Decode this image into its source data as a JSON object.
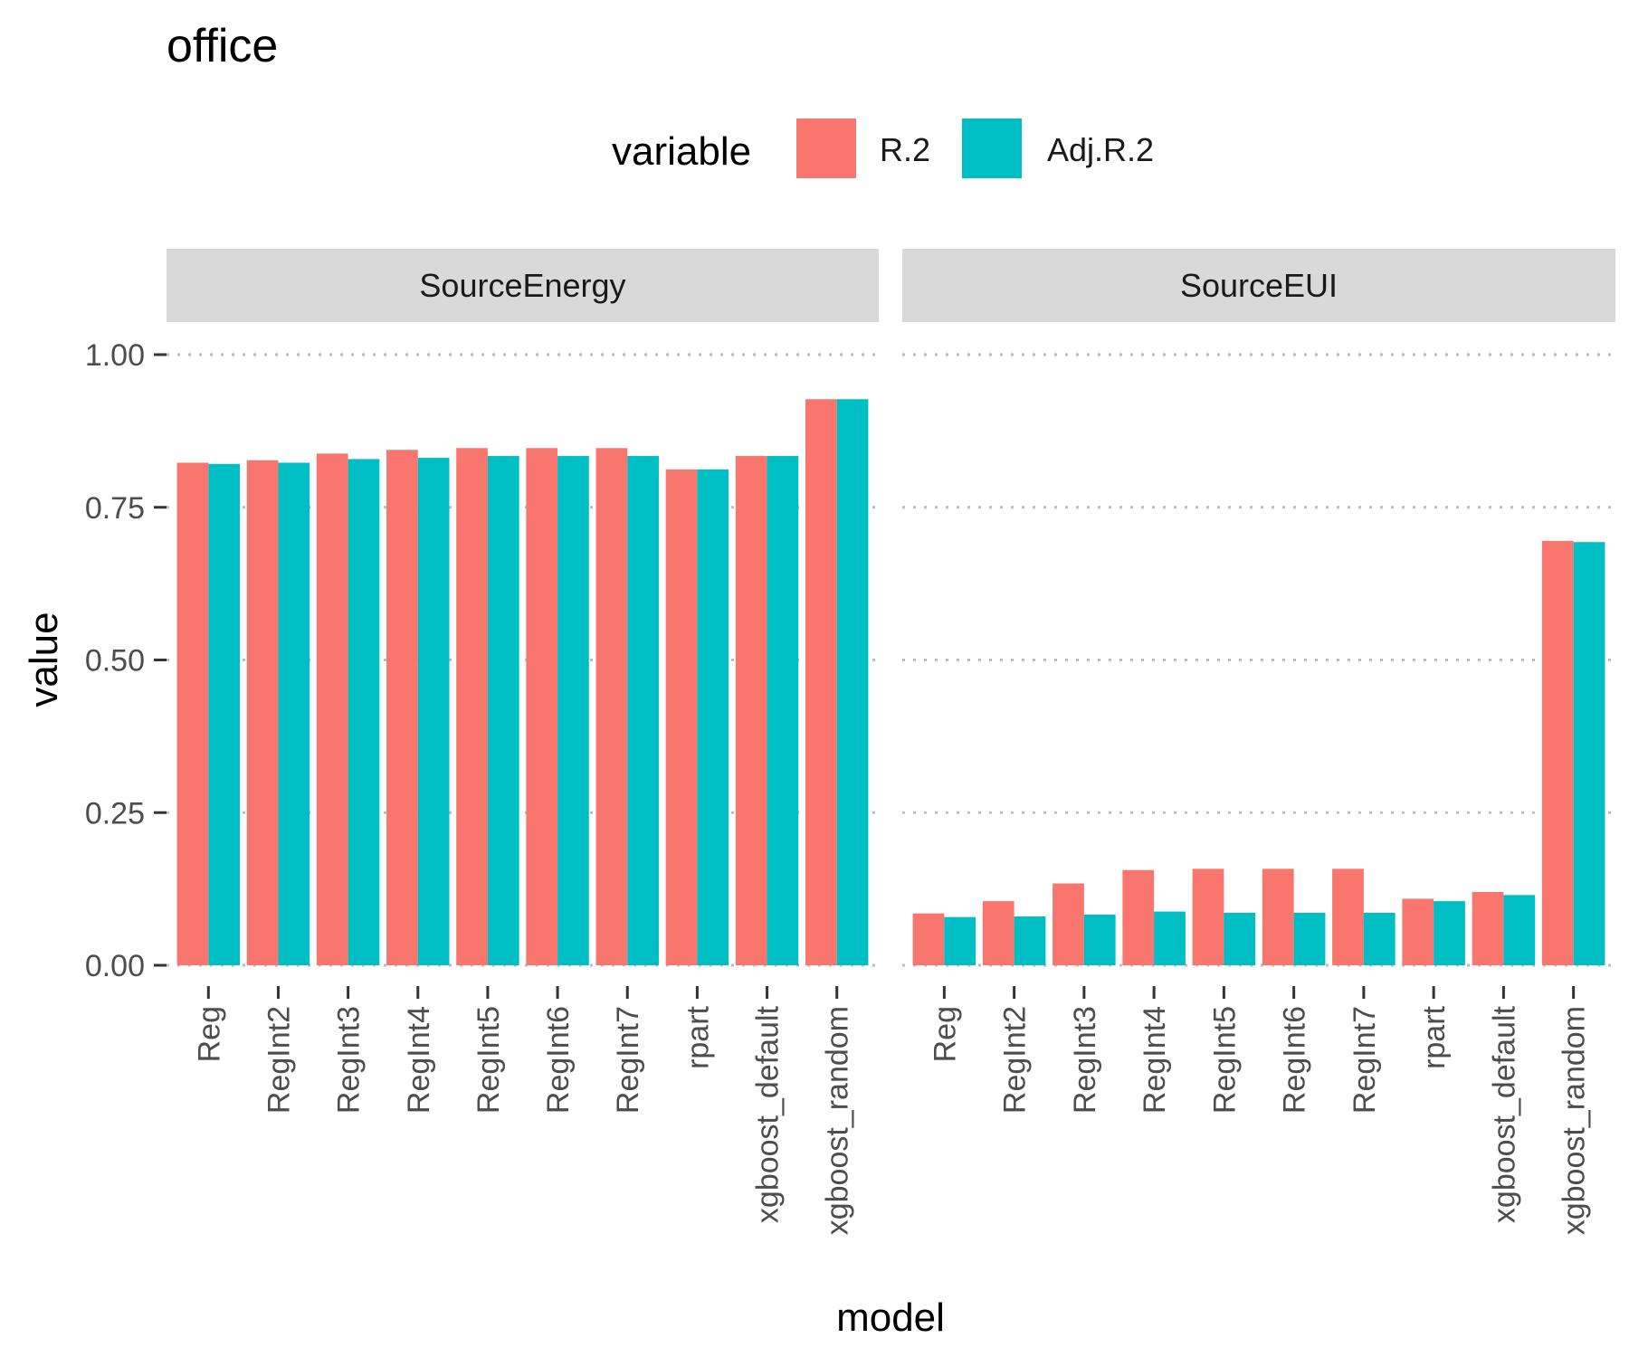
{
  "chart_data": {
    "type": "bar",
    "title": "office",
    "xlabel": "model",
    "ylabel": "value",
    "ylim": [
      0,
      1
    ],
    "y_ticks": [
      "0.00",
      "0.25",
      "0.50",
      "0.75",
      "1.00"
    ],
    "grid": "dotted horizontal major gridlines",
    "legend": {
      "title": "variable",
      "placement": "top",
      "entries": [
        {
          "name": "R.2",
          "color": "#F8766D"
        },
        {
          "name": "Adj.R.2",
          "color": "#00BFC4"
        }
      ]
    },
    "categories": [
      "Reg",
      "RegInt2",
      "RegInt3",
      "RegInt4",
      "RegInt5",
      "RegInt6",
      "RegInt7",
      "rpart",
      "xgboost_default",
      "xgboost_random"
    ],
    "facets": [
      {
        "label": "SourceEnergy",
        "series": [
          {
            "name": "R.2",
            "values": [
              0.823,
              0.827,
              0.838,
              0.844,
              0.847,
              0.847,
              0.847,
              0.812,
              0.834,
              0.927
            ]
          },
          {
            "name": "Adj.R.2",
            "values": [
              0.821,
              0.823,
              0.829,
              0.831,
              0.834,
              0.834,
              0.834,
              0.812,
              0.834,
              0.927
            ]
          }
        ]
      },
      {
        "label": "SourceEUI",
        "series": [
          {
            "name": "R.2",
            "values": [
              0.085,
              0.105,
              0.134,
              0.156,
              0.158,
              0.158,
              0.158,
              0.109,
              0.12,
              0.695
            ]
          },
          {
            "name": "Adj.R.2",
            "values": [
              0.079,
              0.08,
              0.083,
              0.088,
              0.086,
              0.086,
              0.086,
              0.105,
              0.115,
              0.693
            ]
          }
        ]
      }
    ]
  }
}
